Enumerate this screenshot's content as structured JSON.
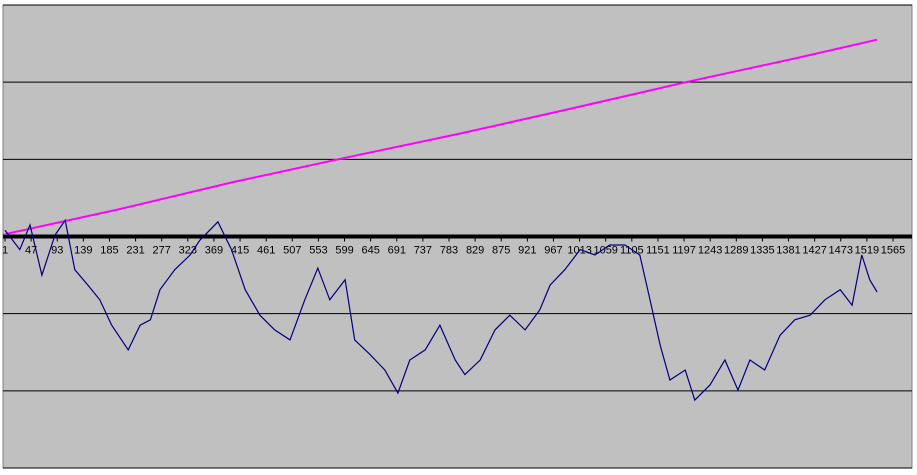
{
  "chart_data": {
    "type": "line",
    "plot_background": "#c0c0c0",
    "grid": true,
    "xlim": [
      1,
      1565
    ],
    "xticks": [
      1,
      47,
      93,
      139,
      185,
      231,
      277,
      323,
      369,
      415,
      461,
      507,
      553,
      599,
      645,
      691,
      737,
      783,
      829,
      875,
      921,
      967,
      1013,
      1059,
      1105,
      1151,
      1197,
      1243,
      1289,
      1335,
      1381,
      1427,
      1473,
      1519,
      1565
    ],
    "ylim": [
      -3,
      3
    ],
    "yticks": [
      -3,
      -2,
      -1,
      0,
      1,
      2,
      3
    ],
    "series": [
      {
        "color": "#ff00ff",
        "x": [
          1,
          200,
          400,
          600,
          800,
          1000,
          1200,
          1400,
          1537
        ],
        "values": [
          0.03,
          0.35,
          0.7,
          1.02,
          1.33,
          1.66,
          2.0,
          2.32,
          2.55
        ]
      },
      {
        "color": "#000080",
        "x": [
          1,
          27,
          45,
          66,
          89,
          107,
          124,
          147,
          168,
          189,
          218,
          239,
          257,
          274,
          300,
          327,
          344,
          376,
          400,
          424,
          450,
          476,
          503,
          529,
          552,
          573,
          600,
          617,
          644,
          670,
          693,
          714,
          741,
          767,
          794,
          811,
          838,
          864,
          890,
          917,
          943,
          961,
          987,
          1014,
          1040,
          1066,
          1093,
          1119,
          1137,
          1155,
          1172,
          1199,
          1216,
          1243,
          1269,
          1292,
          1313,
          1339,
          1366,
          1392,
          1419,
          1445,
          1472,
          1493,
          1510,
          1524,
          1537
        ],
        "values": [
          0.08,
          -0.17,
          0.15,
          -0.5,
          0.02,
          0.21,
          -0.43,
          -0.63,
          -0.82,
          -1.15,
          -1.47,
          -1.15,
          -1.08,
          -0.69,
          -0.43,
          -0.24,
          -0.05,
          0.19,
          -0.17,
          -0.69,
          -1.02,
          -1.21,
          -1.34,
          -0.82,
          -0.41,
          -0.82,
          -0.56,
          -1.34,
          -1.53,
          -1.73,
          -2.03,
          -1.6,
          -1.47,
          -1.15,
          -1.6,
          -1.79,
          -1.6,
          -1.21,
          -1.02,
          -1.21,
          -0.95,
          -0.63,
          -0.43,
          -0.17,
          -0.24,
          -0.11,
          -0.11,
          -0.24,
          -0.82,
          -1.41,
          -1.86,
          -1.73,
          -2.12,
          -1.92,
          -1.6,
          -1.99,
          -1.6,
          -1.73,
          -1.28,
          -1.08,
          -1.02,
          -0.82,
          -0.69,
          -0.89,
          -0.24,
          -0.56,
          -0.72
        ]
      }
    ]
  }
}
